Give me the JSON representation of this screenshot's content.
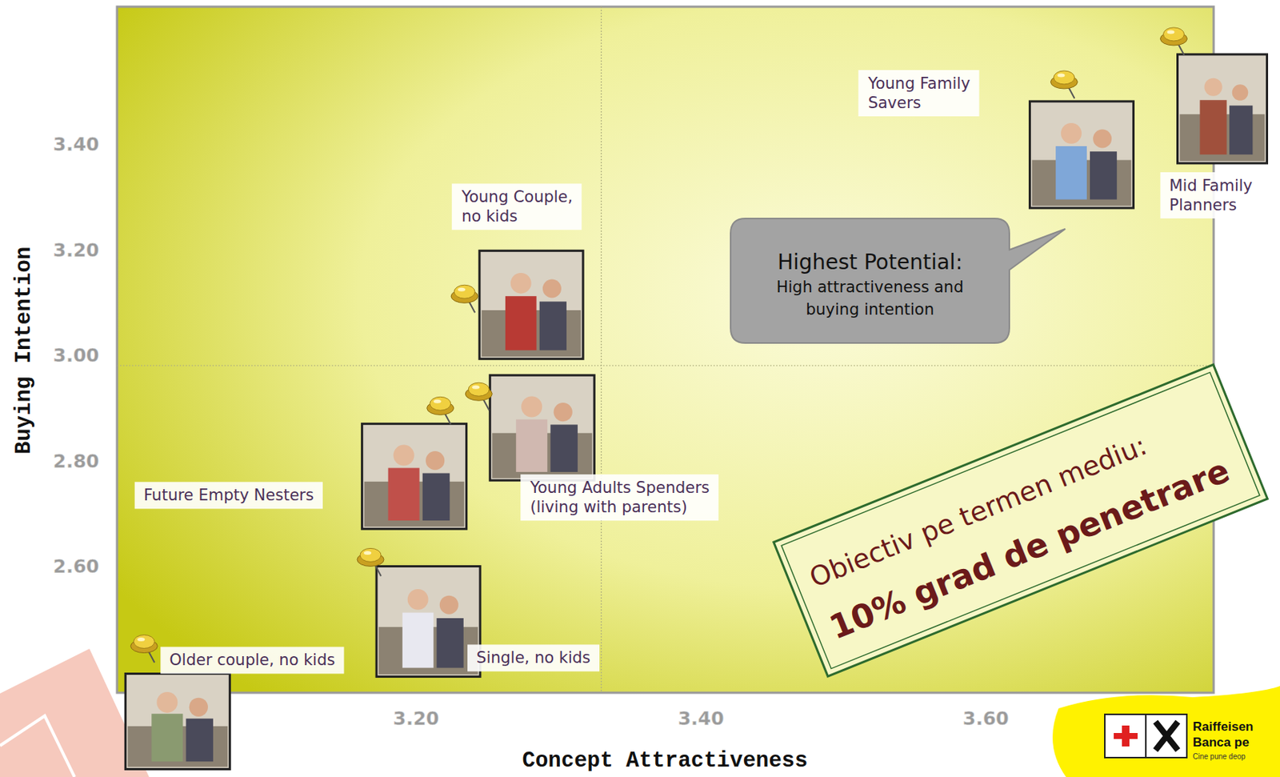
{
  "chart_data": {
    "type": "scatter",
    "xlabel": "Concept Attractiveness",
    "ylabel": "Buying Intention",
    "labels": [
      "Young Family Savers",
      "Mid Family Planners",
      "Young Couple, no kids",
      "Young Adults  Spenders (living with parents)",
      "Future Empty Nesters",
      "Single, no kids",
      "Older couple, no kids"
    ],
    "x": [
      3.655,
      3.732,
      3.234,
      3.244,
      3.217,
      3.168,
      3.009
    ],
    "values": [
      3.523,
      3.605,
      3.117,
      2.932,
      2.905,
      2.618,
      2.454
    ],
    "marker": "pin",
    "color": "#f0d040",
    "xlim": [
      2.99,
      3.76
    ],
    "ylim": [
      2.36,
      3.66
    ],
    "xticks": [
      {
        "value": 3.2,
        "label": "3.20"
      },
      {
        "value": 3.4,
        "label": "3.40"
      },
      {
        "value": 3.6,
        "label": "3.60"
      }
    ],
    "yticks": [
      {
        "value": 2.6,
        "label": "2.60"
      },
      {
        "value": 2.8,
        "label": "2.80"
      },
      {
        "value": 3.0,
        "label": "3.00"
      },
      {
        "value": 3.2,
        "label": "3.20"
      },
      {
        "value": 3.4,
        "label": "3.40"
      }
    ],
    "reference_lines": {
      "x": 3.33,
      "y": 2.98
    },
    "grid": false,
    "callout": {
      "title": "Highest Potential:",
      "text": "High attractiveness and buying intention"
    },
    "objective": {
      "title": "Obiectiv pe termen mediu:",
      "text": "10% grad de penetrare"
    },
    "logo": {
      "name": "Raiffeisen",
      "line": "Banca pe",
      "tagline": "Cine pune deop"
    }
  }
}
